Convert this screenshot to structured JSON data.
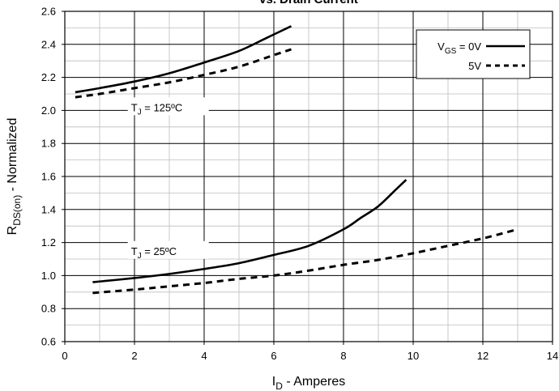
{
  "chart_data": {
    "type": "line",
    "title": "vs. Drain Current",
    "xlabel": {
      "main": "I",
      "sub": "D",
      "rest": " - Amperes"
    },
    "ylabel": {
      "main": "R",
      "sub": "DS(on)",
      "rest": " - Normalized"
    },
    "xlim": [
      0,
      14
    ],
    "ylim": [
      0.6,
      2.6
    ],
    "xticks": [
      0,
      2,
      4,
      6,
      8,
      10,
      12,
      14
    ],
    "xtick_labels": [
      "0",
      "2",
      "4",
      "6",
      "8",
      "10",
      "12",
      "14"
    ],
    "yticks": [
      0.6,
      0.8,
      1.0,
      1.2,
      1.4,
      1.6,
      1.8,
      2.0,
      2.2,
      2.4,
      2.6
    ],
    "ytick_labels": [
      "0.6",
      "0.8",
      "1.0",
      "1.2",
      "1.4",
      "1.6",
      "1.8",
      "2.0",
      "2.2",
      "2.4",
      "2.6"
    ],
    "x_minor_step": 1,
    "y_minor_step": 0.1,
    "grid": true,
    "legend": {
      "position": "top-right",
      "entries": [
        {
          "label_main": "V",
          "label_sub": "GS",
          "label_rest": " = 0V",
          "style": "solid"
        },
        {
          "label_main": "5V",
          "label_sub": "",
          "label_rest": "",
          "style": "dashed"
        }
      ]
    },
    "annotations": [
      {
        "main": "T",
        "sub": "J",
        "rest": " = 125ºC",
        "x": 1.9,
        "y": 2.02
      },
      {
        "main": "T",
        "sub": "J",
        "rest": " = 25ºC",
        "x": 1.9,
        "y": 1.15
      }
    ],
    "series": [
      {
        "condition": "TJ = 125ºC, VGS = 0V",
        "style": "solid",
        "x": [
          0.3,
          1.0,
          2.0,
          3.0,
          4.0,
          5.0,
          5.8,
          6.5
        ],
        "y": [
          2.11,
          2.135,
          2.175,
          2.225,
          2.29,
          2.36,
          2.44,
          2.51
        ]
      },
      {
        "condition": "TJ = 125ºC, VGS = 5V",
        "style": "dashed",
        "x": [
          0.3,
          1.0,
          2.0,
          3.0,
          4.0,
          5.0,
          6.0,
          6.5
        ],
        "y": [
          2.08,
          2.1,
          2.135,
          2.17,
          2.215,
          2.265,
          2.335,
          2.37
        ]
      },
      {
        "condition": "TJ = 25ºC, VGS = 0V",
        "style": "solid",
        "x": [
          0.8,
          2.0,
          3.0,
          4.0,
          5.0,
          6.0,
          7.0,
          8.0,
          8.5,
          9.0,
          9.5,
          9.8
        ],
        "y": [
          0.96,
          0.985,
          1.01,
          1.04,
          1.075,
          1.125,
          1.18,
          1.28,
          1.35,
          1.42,
          1.52,
          1.58
        ]
      },
      {
        "condition": "TJ = 25ºC, VGS = 5V",
        "style": "dashed",
        "x": [
          0.8,
          2.0,
          3.0,
          4.0,
          5.0,
          6.0,
          7.0,
          8.0,
          9.0,
          10.0,
          11.0,
          12.0,
          13.0
        ],
        "y": [
          0.895,
          0.915,
          0.935,
          0.955,
          0.98,
          1.0,
          1.03,
          1.065,
          1.095,
          1.135,
          1.18,
          1.225,
          1.28
        ]
      }
    ]
  }
}
